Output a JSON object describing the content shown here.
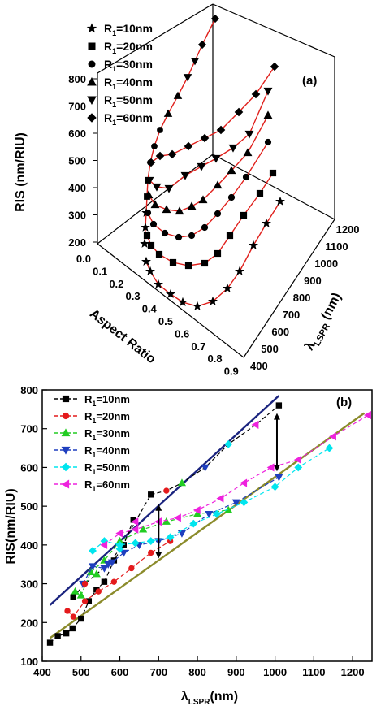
{
  "chart_data": [
    {
      "type": "scatter",
      "panel_label": "(a)",
      "zlabel": "RIS (nm/RIU)",
      "xlabel": "Aspect Ratio",
      "ylabel_main": "λ",
      "ylabel_sub": "LSPR",
      "ylabel_unit": " (nm)",
      "z_ticks": [
        "800",
        "700",
        "600",
        "500",
        "400",
        "300",
        "200"
      ],
      "x_ticks": [
        "0.0",
        "0.1",
        "0.2",
        "0.3",
        "0.4",
        "0.5",
        "0.6",
        "0.7",
        "0.8",
        "0.9"
      ],
      "y_ticks": [
        "400",
        "500",
        "600",
        "700",
        "800",
        "900",
        "1000",
        "1100",
        "1200"
      ],
      "series": [
        {
          "name_main": "R",
          "name_sub": "1",
          "name_rest": "=10nm",
          "marker": "star"
        },
        {
          "name_main": "R",
          "name_sub": "1",
          "name_rest": "=20nm",
          "marker": "square"
        },
        {
          "name_main": "R",
          "name_sub": "1",
          "name_rest": "=30nm",
          "marker": "circle"
        },
        {
          "name_main": "R",
          "name_sub": "1",
          "name_rest": "=40nm",
          "marker": "triangle-up"
        },
        {
          "name_main": "R",
          "name_sub": "1",
          "name_rest": "=50nm",
          "marker": "triangle-down"
        },
        {
          "name_main": "R",
          "name_sub": "1",
          "name_rest": "=60nm",
          "marker": "diamond"
        }
      ]
    },
    {
      "type": "line",
      "panel_label": "(b)",
      "xlabel_main": "λ",
      "xlabel_sub": "LSPR",
      "xlabel_unit": "(nm)",
      "ylabel": "RIS(nm/RIU)",
      "xlim": [
        400,
        1250
      ],
      "ylim": [
        100,
        800
      ],
      "x_ticks": [
        400,
        500,
        600,
        700,
        800,
        900,
        1000,
        1100,
        1200
      ],
      "y_ticks": [
        100,
        200,
        300,
        400,
        500,
        600,
        700,
        800
      ],
      "legend_position": "top-left",
      "series": [
        {
          "name_main": "R",
          "name_sub": "1",
          "name_rest": "=10nm",
          "color": "#000000",
          "marker": "square",
          "x": [
            420,
            440,
            462,
            478,
            500,
            520,
            540,
            560,
            585,
            610,
            635
          ],
          "y": [
            148,
            165,
            172,
            185,
            210,
            255,
            285,
            305,
            360,
            400,
            465
          ]
        },
        {
          "name_main": "R",
          "name_sub": "1",
          "name_rest": "=20nm",
          "color": "#e41a1c",
          "marker": "circle",
          "x": [
            465,
            480,
            510,
            545,
            585,
            630,
            680,
            730
          ],
          "y": [
            230,
            215,
            255,
            280,
            305,
            340,
            380,
            410
          ]
        },
        {
          "name_main": "R",
          "name_sub": "1",
          "name_rest": "=30nm",
          "color": "#22cc22",
          "marker": "triangle-up",
          "x": [
            485,
            500,
            525,
            560,
            600,
            660,
            720,
            800,
            880
          ],
          "y": [
            280,
            270,
            330,
            360,
            410,
            440,
            460,
            480,
            490
          ]
        },
        {
          "name_main": "R",
          "name_sub": "1",
          "name_rest": "=40nm",
          "color": "#1f3fbf",
          "marker": "triangle-down",
          "x": [
            505,
            530,
            560,
            580,
            610,
            650,
            700,
            760,
            830,
            900,
            1010
          ],
          "y": [
            300,
            345,
            340,
            355,
            380,
            400,
            410,
            430,
            480,
            510,
            575
          ]
        },
        {
          "name_main": "R",
          "name_sub": "1",
          "name_rest": "=50nm",
          "color": "#00e5ee",
          "marker": "diamond",
          "x": [
            530,
            560,
            600,
            640,
            680,
            730,
            790,
            850,
            920,
            1000,
            1060,
            1140
          ],
          "y": [
            385,
            410,
            400,
            405,
            410,
            420,
            455,
            480,
            510,
            550,
            600,
            650
          ]
        },
        {
          "name_main": "R",
          "name_sub": "1",
          "name_rest": "=60nm",
          "color": "#ee22dd",
          "marker": "triangle-left",
          "x": [
            560,
            600,
            640,
            700,
            750,
            800,
            860,
            920,
            990,
            1060,
            1150,
            1240
          ],
          "y": [
            400,
            430,
            440,
            460,
            470,
            490,
            520,
            560,
            600,
            620,
            680,
            735
          ]
        }
      ],
      "upper_series": {
        "color": "#000000",
        "x": [
          480,
          510,
          540,
          570,
          600,
          640,
          680,
          720,
          760,
          820,
          880,
          950,
          1010
        ],
        "y": [
          265,
          300,
          325,
          350,
          390,
          460,
          530,
          540,
          560,
          600,
          660,
          710,
          760
        ]
      },
      "upper_fit": {
        "color": "#1a237e",
        "x": [
          420,
          1010
        ],
        "y": [
          245,
          785
        ]
      },
      "lower_fit": {
        "color": "#8b8b2b",
        "x": [
          420,
          1230
        ],
        "y": [
          160,
          740
        ]
      },
      "arrows": [
        {
          "x": 700,
          "y_from": 365,
          "y_to": 505
        },
        {
          "x": 1005,
          "y_from": 590,
          "y_to": 740
        }
      ]
    }
  ]
}
